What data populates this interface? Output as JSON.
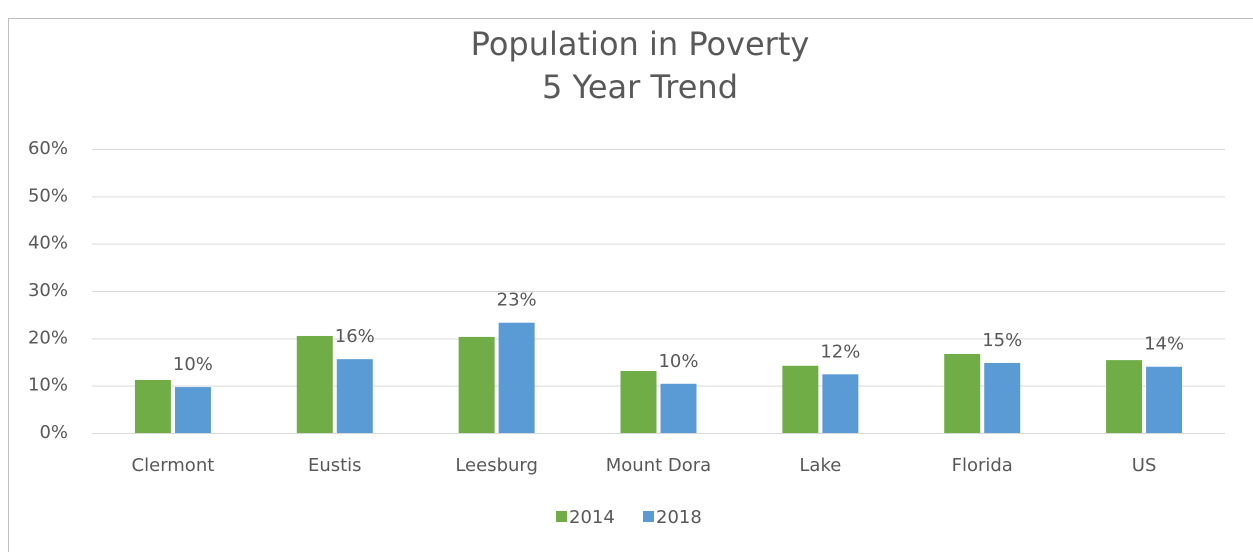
{
  "chart_data": {
    "type": "bar",
    "title": "Population in Poverty",
    "subtitle": "5 Year Trend",
    "categories": [
      "Clermont",
      "Eustis",
      "Leesburg",
      "Mount Dora",
      "Lake",
      "Florida",
      "US"
    ],
    "series": [
      {
        "name": "2014",
        "color": "#70ad47",
        "values": [
          11.2,
          20.5,
          20.3,
          13.1,
          14.2,
          16.7,
          15.4
        ]
      },
      {
        "name": "2018",
        "color": "#5b9bd5",
        "values": [
          9.7,
          15.6,
          23.3,
          10.4,
          12.4,
          14.8,
          14.0
        ],
        "value_labels": [
          "10%",
          "16%",
          "23%",
          "10%",
          "12%",
          "15%",
          "14%"
        ]
      }
    ],
    "ylim": [
      0,
      60
    ],
    "yticks": [
      {
        "value": 0,
        "label": "0%"
      },
      {
        "value": 10,
        "label": "10%"
      },
      {
        "value": 20,
        "label": "20%"
      },
      {
        "value": 30,
        "label": "30%"
      },
      {
        "value": 40,
        "label": "40%"
      },
      {
        "value": 50,
        "label": "50%"
      },
      {
        "value": 60,
        "label": "60%"
      }
    ],
    "grid": true,
    "legend": "bottom"
  }
}
